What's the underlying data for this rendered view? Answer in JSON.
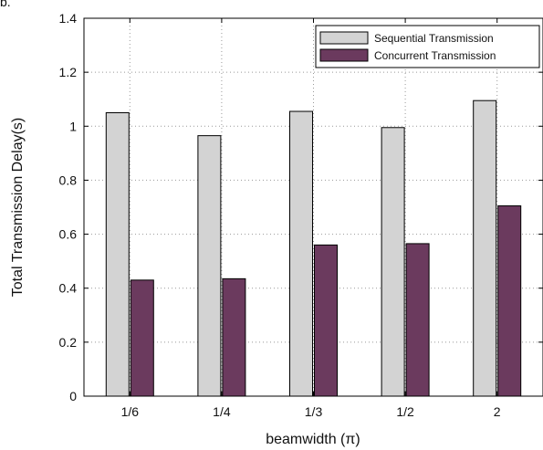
{
  "corner_label": "b.",
  "chart_data": {
    "type": "bar",
    "title": "",
    "xlabel": "beamwidth (π)",
    "ylabel": "Total Transmission Delay(s)",
    "categories": [
      "1/6",
      "1/4",
      "1/3",
      "1/2",
      "2"
    ],
    "ylim": [
      0,
      1.4
    ],
    "yticks": [
      "0",
      "0.2",
      "0.4",
      "0.6",
      "0.8",
      "1",
      "1.2",
      "1.4"
    ],
    "grid": true,
    "legend_position": "top-right",
    "series": [
      {
        "name": "Sequential Transmission",
        "values": [
          1.05,
          0.965,
          1.055,
          0.995,
          1.095
        ],
        "color": "#d3d3d3"
      },
      {
        "name": "Concurrent Transmission",
        "values": [
          0.43,
          0.435,
          0.56,
          0.565,
          0.705
        ],
        "color": "#6b3a5e"
      }
    ]
  }
}
